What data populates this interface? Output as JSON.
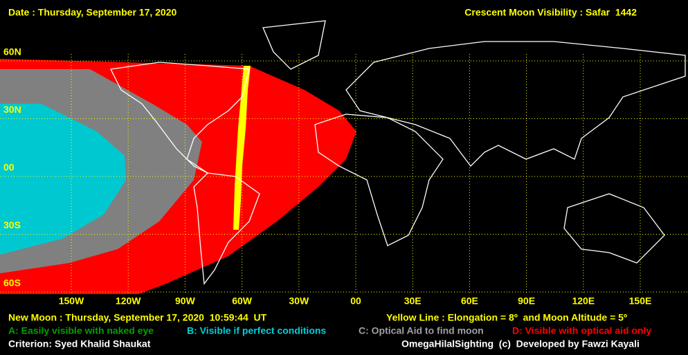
{
  "header": {
    "date": "Date : Thursday, September 17, 2020",
    "title": "Crescent Moon Visibility : Safar  1442"
  },
  "map": {
    "lat_labels": [
      "60N",
      "30N",
      "00",
      "30S",
      "60S"
    ],
    "lon_labels": [
      "150W",
      "120W",
      "90W",
      "60W",
      "30W",
      "00",
      "30E",
      "60E",
      "90E",
      "120E",
      "150E"
    ]
  },
  "footer": {
    "new_moon": "New Moon : Thursday, September 17, 2020  10:59:44  UT",
    "yellow_line": "Yellow Line : Elongation = 8º  and Moon Altitude = 5º",
    "legend": [
      "A: Easily visible with naked eye",
      "B: Visible if perfect conditions",
      "C: Optical Aid to find moon",
      "D: Visible with optical aid only"
    ],
    "criterion": "Criterion: Syed Khalid Shaukat",
    "credit": "OmegaHilalSighting  (c)  Developed by Fawzi Kayali"
  }
}
